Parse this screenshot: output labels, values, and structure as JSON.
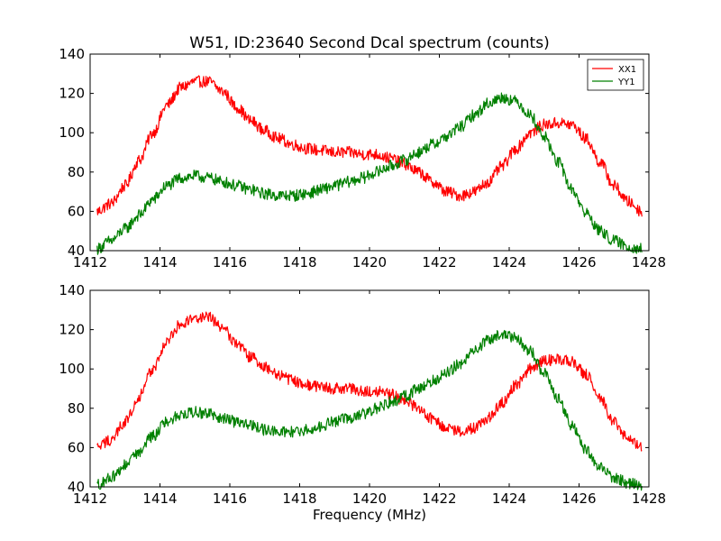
{
  "chart_data": [
    {
      "type": "line",
      "title": "W51, ID:23640 Second Dcal spectrum (counts)",
      "xlabel": "",
      "ylabel": "",
      "xlim": [
        1412,
        1428
      ],
      "ylim": [
        40,
        140
      ],
      "xticks": [
        "1412",
        "1414",
        "1416",
        "1418",
        "1420",
        "1422",
        "1424",
        "1426",
        "1428"
      ],
      "yticks": [
        "40",
        "60",
        "80",
        "100",
        "120",
        "140"
      ],
      "legend_position": "top-right",
      "grid": false,
      "noise_amplitude": 3,
      "series": [
        {
          "name": "XX1",
          "color": "#ff0000",
          "x": [
            1412.2,
            1412.6,
            1413.0,
            1413.4,
            1413.8,
            1414.2,
            1414.6,
            1415.0,
            1415.4,
            1415.8,
            1416.2,
            1416.6,
            1417.0,
            1417.4,
            1417.8,
            1418.2,
            1418.6,
            1419.0,
            1419.4,
            1419.8,
            1420.2,
            1420.6,
            1421.0,
            1421.4,
            1421.8,
            1422.2,
            1422.6,
            1423.0,
            1423.4,
            1423.8,
            1424.2,
            1424.6,
            1425.0,
            1425.4,
            1425.8,
            1426.2,
            1426.6,
            1427.0,
            1427.4,
            1427.8
          ],
          "values": [
            60,
            64,
            73,
            86,
            100,
            114,
            123,
            126,
            126,
            121,
            113,
            106,
            101,
            97,
            94,
            92,
            91,
            90,
            90,
            89,
            89,
            87,
            84,
            80,
            75,
            70,
            68,
            70,
            75,
            83,
            92,
            100,
            104,
            105,
            104,
            97,
            85,
            73,
            65,
            60
          ]
        },
        {
          "name": "YY1",
          "color": "#008000",
          "x": [
            1412.2,
            1412.6,
            1413.0,
            1413.4,
            1413.8,
            1414.2,
            1414.6,
            1415.0,
            1415.4,
            1415.8,
            1416.2,
            1416.6,
            1417.0,
            1417.4,
            1417.8,
            1418.2,
            1418.6,
            1419.0,
            1419.4,
            1419.8,
            1420.2,
            1420.6,
            1421.0,
            1421.4,
            1421.8,
            1422.2,
            1422.6,
            1423.0,
            1423.4,
            1423.8,
            1424.2,
            1424.6,
            1425.0,
            1425.4,
            1425.8,
            1426.2,
            1426.6,
            1427.0,
            1427.4,
            1427.8
          ],
          "values": [
            41,
            45,
            51,
            58,
            66,
            73,
            77,
            78,
            77,
            75,
            73,
            71,
            69,
            68,
            68,
            69,
            71,
            73,
            75,
            77,
            80,
            83,
            86,
            90,
            94,
            98,
            103,
            109,
            115,
            118,
            116,
            109,
            98,
            85,
            71,
            59,
            50,
            45,
            42,
            41
          ]
        }
      ]
    },
    {
      "type": "line",
      "title": "",
      "xlabel": "Frequency (MHz)",
      "ylabel": "",
      "xlim": [
        1412,
        1428
      ],
      "ylim": [
        40,
        140
      ],
      "xticks": [
        "1412",
        "1414",
        "1416",
        "1418",
        "1420",
        "1422",
        "1424",
        "1426",
        "1428"
      ],
      "yticks": [
        "40",
        "60",
        "80",
        "100",
        "120",
        "140"
      ],
      "grid": false,
      "noise_amplitude": 3,
      "series": [
        {
          "color": "#ff0000",
          "x": [
            1412.2,
            1412.6,
            1413.0,
            1413.4,
            1413.8,
            1414.2,
            1414.6,
            1415.0,
            1415.4,
            1415.8,
            1416.2,
            1416.6,
            1417.0,
            1417.4,
            1417.8,
            1418.2,
            1418.6,
            1419.0,
            1419.4,
            1419.8,
            1420.2,
            1420.6,
            1421.0,
            1421.4,
            1421.8,
            1422.2,
            1422.6,
            1423.0,
            1423.4,
            1423.8,
            1424.2,
            1424.6,
            1425.0,
            1425.4,
            1425.8,
            1426.2,
            1426.6,
            1427.0,
            1427.4,
            1427.8
          ],
          "values": [
            60,
            64,
            73,
            86,
            100,
            114,
            123,
            126,
            126,
            121,
            113,
            106,
            101,
            97,
            94,
            92,
            91,
            90,
            90,
            89,
            89,
            87,
            84,
            80,
            75,
            70,
            68,
            70,
            75,
            83,
            92,
            100,
            104,
            105,
            104,
            97,
            85,
            73,
            65,
            60
          ]
        },
        {
          "color": "#008000",
          "x": [
            1412.2,
            1412.6,
            1413.0,
            1413.4,
            1413.8,
            1414.2,
            1414.6,
            1415.0,
            1415.4,
            1415.8,
            1416.2,
            1416.6,
            1417.0,
            1417.4,
            1417.8,
            1418.2,
            1418.6,
            1419.0,
            1419.4,
            1419.8,
            1420.2,
            1420.6,
            1421.0,
            1421.4,
            1421.8,
            1422.2,
            1422.6,
            1423.0,
            1423.4,
            1423.8,
            1424.2,
            1424.6,
            1425.0,
            1425.4,
            1425.8,
            1426.2,
            1426.6,
            1427.0,
            1427.4,
            1427.8
          ],
          "values": [
            41,
            45,
            51,
            58,
            66,
            73,
            77,
            78,
            77,
            75,
            73,
            71,
            69,
            68,
            68,
            69,
            71,
            73,
            75,
            77,
            80,
            83,
            86,
            90,
            94,
            98,
            103,
            109,
            115,
            118,
            116,
            109,
            98,
            85,
            71,
            59,
            50,
            45,
            42,
            41
          ]
        }
      ]
    }
  ]
}
